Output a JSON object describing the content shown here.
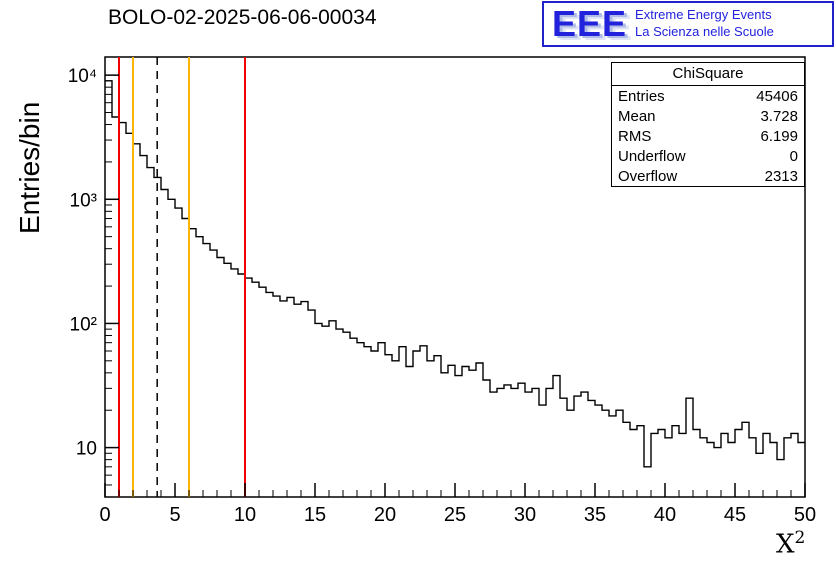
{
  "chart_data": {
    "type": "bar",
    "subtype": "step-histogram",
    "title": "BOLO-02-2025-06-06-00034",
    "xlabel": "X",
    "xlabel_sup": "2",
    "ylabel": "Entries/bin",
    "xlim": [
      0,
      50
    ],
    "ylim": [
      4,
      14000
    ],
    "ylog": true,
    "grid": false,
    "legend": "none",
    "bin_width": 0.5,
    "x_start": 0,
    "line_color": "#000000",
    "values": [
      9000,
      4600,
      4150,
      3400,
      2800,
      2250,
      1800,
      1500,
      1200,
      1000,
      850,
      700,
      580,
      500,
      440,
      390,
      340,
      305,
      275,
      250,
      232,
      215,
      196,
      178,
      166,
      152,
      162,
      143,
      150,
      128,
      100,
      95,
      105,
      90,
      85,
      76,
      70,
      65,
      60,
      70,
      56,
      50,
      65,
      45,
      60,
      66,
      50,
      55,
      40,
      46,
      38,
      45,
      42,
      48,
      35,
      28,
      30,
      32,
      30,
      33,
      28,
      30,
      22,
      30,
      38,
      25,
      20,
      26,
      28,
      24,
      22,
      20,
      18,
      20,
      16,
      14,
      15,
      7,
      13,
      14,
      12,
      15,
      13,
      25,
      14,
      12,
      11,
      10,
      13,
      11,
      14,
      16,
      12,
      9,
      13,
      11,
      8,
      12,
      13,
      11
    ],
    "x_major_ticks": [
      0,
      5,
      10,
      15,
      20,
      25,
      30,
      35,
      40,
      45,
      50
    ],
    "x_minor_step": 1,
    "y_ticks": [
      {
        "value": 10,
        "label": "10"
      },
      {
        "value": 100,
        "label": "10²"
      },
      {
        "value": 1000,
        "label": "10³"
      },
      {
        "value": 10000,
        "label": "10⁴"
      }
    ],
    "markers": [
      {
        "x": 1,
        "color": "#f20000",
        "dashed": false
      },
      {
        "x": 2,
        "color": "#fcb500",
        "dashed": false
      },
      {
        "x": 3.728,
        "color": "#000000",
        "dashed": true
      },
      {
        "x": 6,
        "color": "#fcb500",
        "dashed": false
      },
      {
        "x": 10,
        "color": "#f20000",
        "dashed": false
      }
    ]
  },
  "stats": {
    "title": "ChiSquare",
    "rows": [
      {
        "label": "Entries",
        "value": "45406"
      },
      {
        "label": "Mean",
        "value": "3.728"
      },
      {
        "label": "RMS",
        "value": "6.199"
      },
      {
        "label": "Underflow",
        "value": "0"
      },
      {
        "label": "Overflow",
        "value": "2313"
      }
    ]
  },
  "logo": {
    "acronym": "EEE",
    "line1": "Extreme Energy Events",
    "line2": "La Scienza nelle Scuole",
    "color": "#2222dd"
  }
}
